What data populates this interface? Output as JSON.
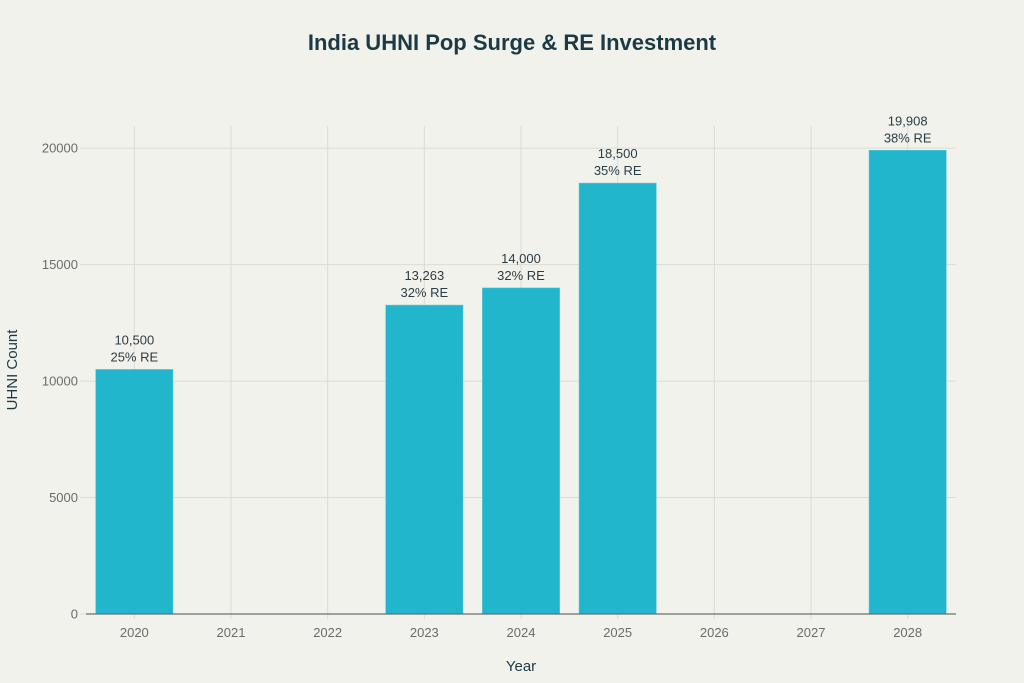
{
  "chart_data": {
    "type": "bar",
    "title": "India UHNI Pop Surge & RE Investment",
    "xlabel": "Year",
    "ylabel": "UHNI Count",
    "categories": [
      "2020",
      "2021",
      "2022",
      "2023",
      "2024",
      "2025",
      "2026",
      "2027",
      "2028"
    ],
    "values": [
      10500,
      null,
      null,
      13263,
      14000,
      18500,
      null,
      null,
      19908
    ],
    "value_labels": [
      "10,500",
      "",
      "",
      "13,263",
      "14,000",
      "18,500",
      "",
      "",
      "19,908"
    ],
    "re_labels": [
      "25% RE",
      "",
      "",
      "32% RE",
      "32% RE",
      "35% RE",
      "",
      "",
      "38% RE"
    ],
    "ylim": [
      0,
      20950
    ],
    "yticks": [
      0,
      5000,
      10000,
      15000,
      20000
    ],
    "ytick_labels": [
      "0",
      "5000",
      "10000",
      "15000",
      "20000"
    ],
    "grid": true,
    "bar_color": "#21b6cb",
    "background": "#f2f2ed"
  }
}
